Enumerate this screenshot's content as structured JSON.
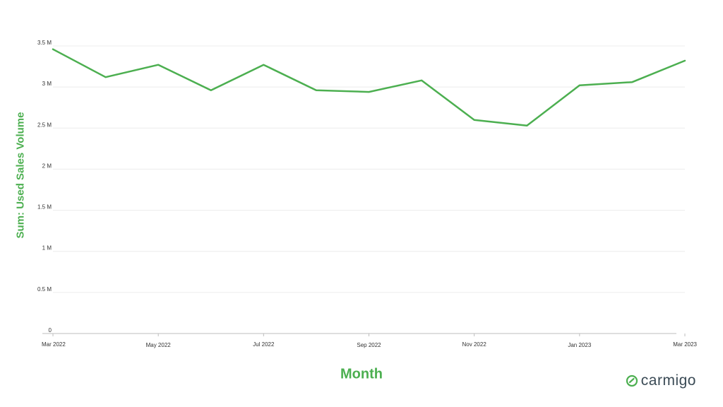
{
  "chart_data": {
    "type": "line",
    "xlabel": "Month",
    "ylabel": "Sum: Used Sales Volume",
    "ylim": [
      0,
      3500000
    ],
    "y_ticks": [
      {
        "value": 0,
        "label": "0"
      },
      {
        "value": 500000,
        "label": "0.5 M"
      },
      {
        "value": 1000000,
        "label": "1 M"
      },
      {
        "value": 1500000,
        "label": "1.5 M"
      },
      {
        "value": 2000000,
        "label": "2 M"
      },
      {
        "value": 2500000,
        "label": "2.5 M"
      },
      {
        "value": 3000000,
        "label": "3 M"
      },
      {
        "value": 3500000,
        "label": "3.5 M"
      }
    ],
    "x": [
      "2022-03",
      "2022-04",
      "2022-05",
      "2022-06",
      "2022-07",
      "2022-08",
      "2022-09",
      "2022-10",
      "2022-11",
      "2022-12",
      "2023-01",
      "2023-02",
      "2023-03"
    ],
    "x_tick_labels": [
      "Mar 2022",
      "",
      "May 2022",
      "",
      "Jul 2022",
      "",
      "Sep 2022",
      "",
      "Nov 2022",
      "",
      "Jan 2023",
      "",
      "Mar 2023"
    ],
    "series": [
      {
        "values": [
          3460000,
          3120000,
          3270000,
          2960000,
          3270000,
          2960000,
          2940000,
          3080000,
          2600000,
          2530000,
          3020000,
          3060000,
          3320000
        ]
      }
    ],
    "grid": true,
    "line_color": "#4caf50"
  },
  "logo": {
    "text": "carmigo"
  }
}
